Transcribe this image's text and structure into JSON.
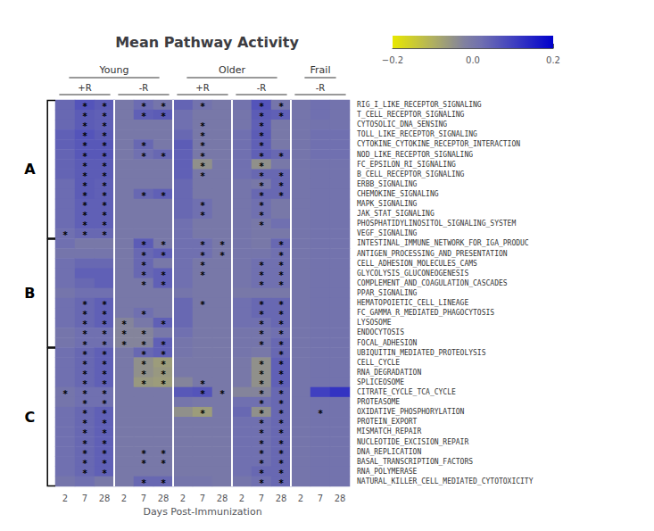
{
  "chart_data": {
    "type": "heatmap",
    "title": "Mean Pathway Activity",
    "xlabel": "Days Post-Immunization",
    "grid": false,
    "categories": [
      "2",
      "7",
      "28",
      "2",
      "7",
      "28",
      "2",
      "7",
      "28",
      "2",
      "7",
      "28",
      "2",
      "7",
      "28"
    ],
    "rows": [
      "RIG_I_LIKE_RECEPTOR_SIGNALING",
      "T_CELL_RECEPTOR_SIGNALING",
      "CYTOSOLIC_DNA_SENSING",
      "TOLL_LIKE_RECEPTOR_SIGNALING",
      "CYTOKINE_CYTOKINE_RECEPTOR_INTERACTION",
      "NOD_LIKE_RECEPTOR_SIGNALING",
      "FC_EPSILON_RI_SIGNALING",
      "B_CELL_RECEPTOR_SIGNALING",
      "ERBB_SIGNALING",
      "CHEMOKINE_SIGNALING",
      "MAPK_SIGNALING",
      "JAK_STAT_SIGNALING",
      "PHOSPHATIDYLINOSITOL_SIGNALING_SYSTEM",
      "VEGF_SIGNALING",
      "INTESTINAL_IMMUNE_NETWORK_FOR_IGA_PRODUC",
      "ANTIGEN_PROCESSING_AND_PRESENTATION",
      "CELL_ADHESION_MOLECULES_CAMS",
      "GLYCOLYSIS_GLUCONEOGENESIS",
      "COMPLEMENT_AND_COAGULATION_CASCADES",
      "PPAR_SIGNALING",
      "HEMATOPOIETIC_CELL_LINEAGE",
      "FC_GAMMA_R_MEDIATED_PHAGOCYTOSIS",
      "LYSOSOME",
      "ENDOCYTOSIS",
      "FOCAL_ADHESION",
      "UBIQUITIN_MEDIATED_PROTEOLYSIS",
      "CELL_CYCLE",
      "RNA_DEGRADATION",
      "SPLICEOSOME",
      "CITRATE_CYCLE_TCA_CYCLE",
      "PROTEASOME",
      "OXIDATIVE_PHOSPHORYLATION",
      "PROTEIN_EXPORT",
      "MISMATCH_REPAIR",
      "NUCLEOTIDE_EXCISION_REPAIR",
      "DNA_REPLICATION",
      "BASAL_TRANSCRIPTION_FACTORS",
      "RNA_POLYMERASE",
      "NATURAL_KILLER_CELL_MEDIATED_CYTOTOXICITY"
    ],
    "values": [
      [
        0.05,
        0.1,
        0.08,
        0.0,
        0.04,
        0.01,
        0.06,
        0.02,
        0.0,
        0.02,
        0.1,
        0.01,
        0.01,
        0.03,
        0.02
      ],
      [
        0.05,
        0.08,
        0.07,
        0.0,
        0.07,
        0.08,
        0.03,
        0.0,
        0.0,
        0.01,
        0.08,
        0.07,
        0.01,
        0.03,
        0.02
      ],
      [
        0.05,
        0.08,
        0.07,
        0.0,
        0.0,
        0.0,
        0.03,
        0.0,
        0.0,
        0.01,
        0.07,
        0.0,
        0.01,
        0.02,
        0.02
      ],
      [
        0.07,
        0.1,
        0.08,
        0.0,
        0.0,
        0.0,
        0.05,
        0.0,
        0.0,
        0.03,
        0.08,
        0.0,
        0.01,
        0.03,
        0.03
      ],
      [
        0.07,
        0.09,
        0.09,
        0.0,
        0.05,
        0.0,
        0.08,
        0.0,
        0.0,
        0.03,
        0.07,
        0.0,
        0.01,
        0.03,
        0.03
      ],
      [
        0.06,
        0.09,
        0.09,
        0.0,
        0.03,
        0.05,
        0.07,
        0.0,
        0.0,
        0.03,
        0.07,
        0.05,
        0.01,
        0.03,
        0.03
      ],
      [
        0.06,
        0.08,
        0.08,
        0.0,
        0.0,
        0.0,
        0.07,
        -0.07,
        0.0,
        0.03,
        -0.07,
        0.0,
        0.01,
        0.02,
        0.02
      ],
      [
        0.06,
        0.08,
        0.08,
        0.0,
        0.0,
        0.0,
        0.07,
        0.0,
        0.0,
        0.03,
        0.05,
        0.05,
        0.01,
        0.02,
        0.02
      ],
      [
        0.04,
        0.08,
        0.07,
        0.0,
        0.0,
        0.0,
        0.05,
        0.0,
        0.0,
        0.01,
        0.0,
        0.05,
        0.01,
        0.02,
        0.02
      ],
      [
        0.04,
        0.08,
        0.07,
        0.0,
        0.05,
        0.07,
        0.05,
        0.0,
        0.0,
        0.01,
        0.05,
        0.05,
        0.01,
        0.02,
        0.02
      ],
      [
        0.04,
        0.07,
        0.07,
        0.0,
        0.0,
        0.0,
        0.05,
        0.03,
        0.0,
        0.01,
        0.03,
        0.0,
        0.01,
        0.02,
        0.02
      ],
      [
        0.04,
        0.07,
        0.07,
        0.0,
        0.0,
        0.0,
        0.05,
        0.03,
        0.0,
        0.01,
        0.03,
        0.0,
        0.01,
        0.02,
        0.02
      ],
      [
        0.04,
        0.07,
        0.07,
        0.0,
        0.0,
        0.0,
        0.03,
        0.0,
        0.0,
        0.01,
        0.0,
        0.03,
        0.01,
        0.02,
        0.02
      ],
      [
        0.03,
        0.05,
        0.05,
        0.0,
        0.0,
        0.0,
        0.03,
        0.0,
        0.0,
        0.01,
        0.0,
        0.0,
        0.01,
        0.02,
        0.02
      ],
      [
        0.03,
        0.0,
        0.0,
        0.0,
        0.08,
        0.0,
        0.03,
        0.03,
        0.0,
        0.01,
        0.0,
        0.05,
        0.01,
        0.02,
        0.02
      ],
      [
        0.01,
        0.01,
        0.01,
        0.0,
        0.05,
        0.07,
        0.03,
        0.03,
        0.0,
        0.01,
        0.01,
        0.03,
        0.01,
        0.02,
        0.02
      ],
      [
        0.03,
        0.05,
        0.05,
        0.0,
        0.05,
        0.0,
        0.03,
        0.0,
        0.0,
        0.01,
        0.03,
        0.03,
        0.01,
        0.02,
        0.02
      ],
      [
        0.03,
        0.07,
        0.07,
        0.0,
        0.05,
        0.07,
        0.03,
        0.0,
        0.0,
        0.01,
        0.03,
        0.03,
        0.01,
        0.02,
        0.02
      ],
      [
        0.03,
        0.05,
        0.07,
        0.0,
        0.0,
        0.07,
        0.03,
        0.0,
        0.0,
        0.01,
        0.03,
        0.03,
        0.01,
        0.02,
        0.02
      ],
      [
        0.01,
        0.03,
        0.03,
        0.0,
        0.0,
        0.0,
        0.01,
        0.0,
        0.0,
        0.0,
        0.0,
        0.0,
        0.01,
        0.02,
        0.02
      ],
      [
        0.03,
        0.05,
        0.07,
        0.0,
        0.0,
        0.0,
        0.05,
        0.0,
        0.0,
        0.03,
        0.05,
        0.05,
        0.01,
        0.02,
        0.02
      ],
      [
        0.03,
        0.05,
        0.07,
        0.0,
        0.03,
        0.0,
        0.05,
        0.0,
        0.0,
        0.03,
        0.05,
        0.05,
        0.01,
        0.02,
        0.02
      ],
      [
        0.03,
        0.05,
        0.07,
        -0.04,
        0.0,
        0.07,
        0.05,
        0.0,
        0.0,
        0.03,
        0.03,
        0.05,
        0.01,
        0.02,
        0.02
      ],
      [
        0.01,
        0.03,
        0.03,
        -0.04,
        -0.04,
        0.0,
        0.03,
        0.0,
        0.0,
        0.01,
        0.01,
        0.03,
        0.01,
        0.02,
        0.02
      ],
      [
        0.01,
        0.03,
        0.03,
        -0.04,
        -0.04,
        0.07,
        0.01,
        0.0,
        0.0,
        0.01,
        0.01,
        0.05,
        0.01,
        0.02,
        0.02
      ],
      [
        0.03,
        0.05,
        0.07,
        0.0,
        0.05,
        0.07,
        0.01,
        0.0,
        0.0,
        0.01,
        0.0,
        0.05,
        0.01,
        0.02,
        0.02
      ],
      [
        0.03,
        0.05,
        0.07,
        0.0,
        -0.07,
        -0.1,
        0.0,
        0.0,
        0.0,
        0.0,
        -0.07,
        0.07,
        0.01,
        0.02,
        0.02
      ],
      [
        0.03,
        0.05,
        0.07,
        0.0,
        -0.07,
        -0.09,
        0.0,
        0.0,
        0.0,
        0.0,
        -0.07,
        0.07,
        0.01,
        0.02,
        0.02
      ],
      [
        0.03,
        0.05,
        0.07,
        0.0,
        -0.09,
        -0.1,
        -0.04,
        0.0,
        0.0,
        0.0,
        -0.07,
        0.07,
        0.01,
        0.02,
        0.02
      ],
      [
        0.01,
        0.03,
        0.03,
        0.0,
        0.0,
        0.0,
        0.09,
        0.1,
        0.0,
        -0.04,
        -0.04,
        0.05,
        0.01,
        0.15,
        0.18
      ],
      [
        0.01,
        0.03,
        0.03,
        0.0,
        0.0,
        0.0,
        0.01,
        0.0,
        0.0,
        0.03,
        0.03,
        0.05,
        0.01,
        0.02,
        0.02
      ],
      [
        0.03,
        0.05,
        0.07,
        0.0,
        0.0,
        0.0,
        -0.07,
        -0.1,
        0.0,
        0.05,
        -0.07,
        0.05,
        0.01,
        0.02,
        0.02
      ],
      [
        0.03,
        0.05,
        0.07,
        0.0,
        0.0,
        0.0,
        0.0,
        0.0,
        0.0,
        0.03,
        0.03,
        0.05,
        0.01,
        0.02,
        0.02
      ],
      [
        0.03,
        0.05,
        0.07,
        0.0,
        0.0,
        0.0,
        0.0,
        0.0,
        0.0,
        0.03,
        0.03,
        0.05,
        0.01,
        0.02,
        0.02
      ],
      [
        0.03,
        0.05,
        0.07,
        0.0,
        0.0,
        0.0,
        0.0,
        0.0,
        0.0,
        0.03,
        0.03,
        0.05,
        0.01,
        0.02,
        0.02
      ],
      [
        0.03,
        0.05,
        0.07,
        0.0,
        0.0,
        0.0,
        0.0,
        0.0,
        0.0,
        0.03,
        0.03,
        0.05,
        0.01,
        0.02,
        0.02
      ],
      [
        0.03,
        0.05,
        0.07,
        0.0,
        0.0,
        0.0,
        0.0,
        0.0,
        0.0,
        0.03,
        0.03,
        0.05,
        0.01,
        0.02,
        0.02
      ],
      [
        0.03,
        0.05,
        0.07,
        0.0,
        0.0,
        0.0,
        0.0,
        0.0,
        0.0,
        0.03,
        0.05,
        0.05,
        0.01,
        0.02,
        0.02
      ],
      [
        0.01,
        0.03,
        0.0,
        0.0,
        0.05,
        0.05,
        0.01,
        0.01,
        0.0,
        0.01,
        0.03,
        0.05,
        0.01,
        0.02,
        0.02
      ]
    ],
    "vmin": -0.3,
    "vmax": 0.3,
    "colorscale": [
      [
        0.0,
        "#e8e800"
      ],
      [
        0.25,
        "#b0b060"
      ],
      [
        0.45,
        "#8080a0"
      ],
      [
        0.55,
        "#7070b0"
      ],
      [
        0.75,
        "#4040c0"
      ],
      [
        1.0,
        "#0000cc"
      ]
    ],
    "colorbar_range": [
      -0.2,
      0.2
    ],
    "colorbar_ticks": [
      {
        "value": -0.2,
        "label": "−0.2"
      },
      {
        "value": 0,
        "label": "0.0"
      },
      0.2
    ],
    "groups": [
      {
        "name": "Young",
        "start": 0,
        "end": 5
      },
      {
        "name": "Older",
        "start": 6,
        "end": 11
      },
      {
        "name": "Frail",
        "start": 12,
        "end": 14
      }
    ],
    "subgroups": [
      {
        "name": "+R",
        "center": 1
      },
      {
        "name": "-R",
        "center": 4
      },
      {
        "name": "+R",
        "center": 7
      },
      {
        "name": "-R",
        "center": 10
      },
      {
        "name": "-R",
        "center": 13
      }
    ],
    "clusters": [
      {
        "label": "A",
        "start": 0,
        "end": 13
      },
      {
        "label": "B",
        "start": 14,
        "end": 24
      },
      {
        "label": "C",
        "start": 25,
        "end": 38
      }
    ],
    "group_separators": [
      3,
      6,
      9,
      12
    ],
    "asterisk_text": "*",
    "asterisks": [
      [
        0,
        1
      ],
      [
        0,
        2
      ],
      [
        0,
        4
      ],
      [
        0,
        5
      ],
      [
        0,
        7
      ],
      [
        0,
        10
      ],
      [
        0,
        11
      ],
      [
        1,
        1
      ],
      [
        1,
        2
      ],
      [
        1,
        4
      ],
      [
        1,
        5
      ],
      [
        1,
        10
      ],
      [
        1,
        11
      ],
      [
        2,
        1
      ],
      [
        2,
        2
      ],
      [
        2,
        7
      ],
      [
        2,
        10
      ],
      [
        3,
        1
      ],
      [
        3,
        2
      ],
      [
        3,
        7
      ],
      [
        3,
        10
      ],
      [
        4,
        1
      ],
      [
        4,
        2
      ],
      [
        4,
        4
      ],
      [
        4,
        7
      ],
      [
        4,
        10
      ],
      [
        5,
        1
      ],
      [
        5,
        2
      ],
      [
        5,
        4
      ],
      [
        5,
        5
      ],
      [
        5,
        7
      ],
      [
        5,
        10
      ],
      [
        5,
        11
      ],
      [
        6,
        1
      ],
      [
        6,
        2
      ],
      [
        6,
        7
      ],
      [
        6,
        10
      ],
      [
        7,
        1
      ],
      [
        7,
        2
      ],
      [
        7,
        7
      ],
      [
        7,
        10
      ],
      [
        7,
        11
      ],
      [
        8,
        1
      ],
      [
        8,
        2
      ],
      [
        8,
        10
      ],
      [
        8,
        11
      ],
      [
        9,
        1
      ],
      [
        9,
        2
      ],
      [
        9,
        4
      ],
      [
        9,
        5
      ],
      [
        9,
        10
      ],
      [
        9,
        11
      ],
      [
        10,
        1
      ],
      [
        10,
        2
      ],
      [
        10,
        7
      ],
      [
        10,
        10
      ],
      [
        11,
        1
      ],
      [
        11,
        2
      ],
      [
        11,
        7
      ],
      [
        11,
        10
      ],
      [
        12,
        1
      ],
      [
        12,
        2
      ],
      [
        12,
        10
      ],
      [
        13,
        0
      ],
      [
        13,
        1
      ],
      [
        13,
        2
      ],
      [
        14,
        4
      ],
      [
        14,
        5
      ],
      [
        14,
        7
      ],
      [
        14,
        8
      ],
      [
        14,
        11
      ],
      [
        15,
        4
      ],
      [
        15,
        5
      ],
      [
        15,
        7
      ],
      [
        15,
        8
      ],
      [
        15,
        11
      ],
      [
        16,
        4
      ],
      [
        16,
        7
      ],
      [
        16,
        10
      ],
      [
        16,
        11
      ],
      [
        17,
        4
      ],
      [
        17,
        5
      ],
      [
        17,
        7
      ],
      [
        17,
        10
      ],
      [
        17,
        11
      ],
      [
        18,
        4
      ],
      [
        18,
        5
      ],
      [
        18,
        10
      ],
      [
        18,
        11
      ],
      [
        20,
        1
      ],
      [
        20,
        2
      ],
      [
        20,
        7
      ],
      [
        20,
        10
      ],
      [
        20,
        11
      ],
      [
        21,
        1
      ],
      [
        21,
        2
      ],
      [
        21,
        4
      ],
      [
        21,
        10
      ],
      [
        21,
        11
      ],
      [
        22,
        1
      ],
      [
        22,
        2
      ],
      [
        22,
        3
      ],
      [
        22,
        5
      ],
      [
        22,
        10
      ],
      [
        22,
        11
      ],
      [
        23,
        1
      ],
      [
        23,
        2
      ],
      [
        23,
        3
      ],
      [
        23,
        4
      ],
      [
        23,
        10
      ],
      [
        23,
        11
      ],
      [
        24,
        1
      ],
      [
        24,
        2
      ],
      [
        24,
        3
      ],
      [
        24,
        4
      ],
      [
        24,
        5
      ],
      [
        24,
        10
      ],
      [
        24,
        11
      ],
      [
        25,
        1
      ],
      [
        25,
        2
      ],
      [
        25,
        4
      ],
      [
        25,
        5
      ],
      [
        25,
        11
      ],
      [
        26,
        1
      ],
      [
        26,
        2
      ],
      [
        26,
        4
      ],
      [
        26,
        5
      ],
      [
        26,
        10
      ],
      [
        26,
        11
      ],
      [
        27,
        1
      ],
      [
        27,
        2
      ],
      [
        27,
        4
      ],
      [
        27,
        5
      ],
      [
        27,
        10
      ],
      [
        27,
        11
      ],
      [
        28,
        1
      ],
      [
        28,
        2
      ],
      [
        28,
        4
      ],
      [
        28,
        5
      ],
      [
        28,
        7
      ],
      [
        28,
        10
      ],
      [
        28,
        11
      ],
      [
        29,
        1
      ],
      [
        29,
        2
      ],
      [
        29,
        7
      ],
      [
        29,
        8
      ],
      [
        29,
        10
      ],
      [
        29,
        11
      ],
      [
        30,
        1
      ],
      [
        30,
        2
      ],
      [
        30,
        10
      ],
      [
        30,
        11
      ],
      [
        31,
        1
      ],
      [
        31,
        2
      ],
      [
        31,
        7
      ],
      [
        31,
        10
      ],
      [
        31,
        11
      ],
      [
        32,
        1
      ],
      [
        32,
        2
      ],
      [
        32,
        10
      ],
      [
        32,
        11
      ],
      [
        33,
        1
      ],
      [
        33,
        2
      ],
      [
        33,
        10
      ],
      [
        33,
        11
      ],
      [
        34,
        1
      ],
      [
        34,
        2
      ],
      [
        34,
        10
      ],
      [
        34,
        11
      ],
      [
        35,
        1
      ],
      [
        35,
        2
      ],
      [
        35,
        4
      ],
      [
        35,
        5
      ],
      [
        35,
        10
      ],
      [
        35,
        11
      ],
      [
        36,
        1
      ],
      [
        36,
        2
      ],
      [
        36,
        4
      ],
      [
        36,
        5
      ],
      [
        36,
        10
      ],
      [
        36,
        11
      ],
      [
        37,
        1
      ],
      [
        37,
        2
      ],
      [
        37,
        10
      ],
      [
        37,
        11
      ],
      [
        38,
        4
      ],
      [
        38,
        5
      ],
      [
        38,
        10
      ],
      [
        38,
        11
      ]
    ],
    "star_special": [
      [
        29,
        0
      ],
      [
        31,
        13
      ]
    ]
  }
}
